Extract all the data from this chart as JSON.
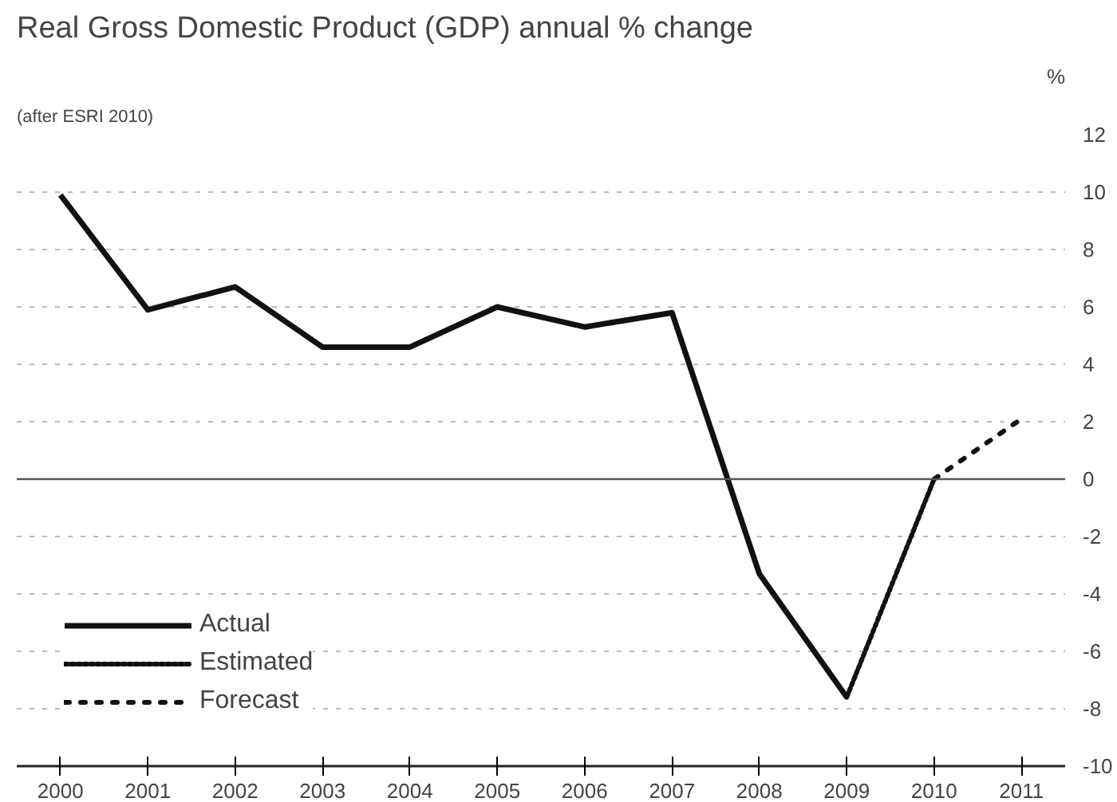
{
  "chart_data": {
    "type": "line",
    "title": "Real Gross Domestic Product (GDP) annual % change",
    "subtitle": "(after ESRI 2010)",
    "ylabel": "%",
    "series": [
      {
        "name": "Actual",
        "color": "#111111",
        "line_style": "solid",
        "x": [
          2000,
          2001,
          2002,
          2003,
          2004,
          2005,
          2006,
          2007,
          2008,
          2009
        ],
        "values": [
          9.9,
          5.9,
          6.7,
          4.6,
          4.6,
          6.0,
          5.3,
          5.8,
          -3.3,
          -7.6
        ]
      },
      {
        "name": "Estimated",
        "color": "#111111",
        "line_style": "dotted",
        "x": [
          2009,
          2010
        ],
        "values": [
          -7.6,
          0.0
        ]
      },
      {
        "name": "Forecast",
        "color": "#111111",
        "line_style": "dotted",
        "x": [
          2010,
          2011
        ],
        "values": [
          0.0,
          2.1
        ]
      }
    ],
    "xlim": [
      1999.5,
      2011.5
    ],
    "xticks": [
      2000,
      2001,
      2002,
      2003,
      2004,
      2005,
      2006,
      2007,
      2008,
      2009,
      2010,
      2011
    ],
    "ylim": [
      -10,
      12
    ],
    "yticks": [
      -10,
      -8,
      -6,
      -4,
      -2,
      0,
      2,
      4,
      6,
      8,
      10,
      12
    ],
    "ref_lines": [
      {
        "axis": "y",
        "value": 0,
        "color": "#555555"
      }
    ],
    "grid": "y",
    "legend": "bottom left",
    "marker": "none"
  }
}
